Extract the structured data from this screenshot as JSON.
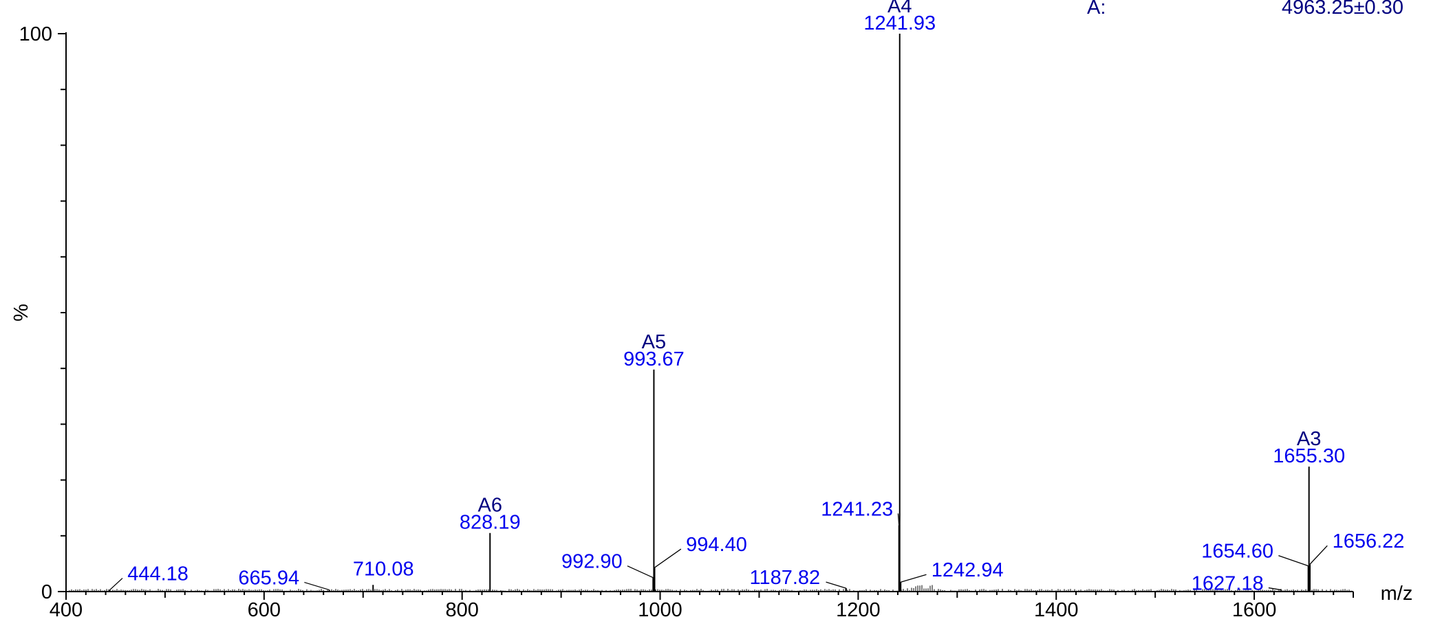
{
  "chart_data": {
    "type": "bar",
    "title": "",
    "xlabel": "m/z",
    "ylabel": "%",
    "xlim": [
      400,
      1700
    ],
    "ylim": [
      0,
      100
    ],
    "x_ticks": [
      400,
      600,
      800,
      1000,
      1200,
      1400,
      1600
    ],
    "y_ticks": [
      0,
      100
    ],
    "header": {
      "series": "A:",
      "mass": "4963.25±0.30"
    },
    "colors": {
      "charge_label": "#000080",
      "mz_label": "#0000ee",
      "peak": "#000000"
    },
    "peaks": [
      {
        "mz": 444.18,
        "intensity": 0.3,
        "label": "444.18"
      },
      {
        "mz": 665.94,
        "intensity": 0.3,
        "label": "665.94"
      },
      {
        "mz": 710.08,
        "intensity": 1.2,
        "label": "710.08"
      },
      {
        "mz": 828.19,
        "intensity": 10.5,
        "label": "828.19",
        "ion": "A6"
      },
      {
        "mz": 992.9,
        "intensity": 2.5,
        "label": "992.90"
      },
      {
        "mz": 993.67,
        "intensity": 39.8,
        "label": "993.67",
        "ion": "A5"
      },
      {
        "mz": 994.4,
        "intensity": 4.3,
        "label": "994.40"
      },
      {
        "mz": 1187.82,
        "intensity": 0.6,
        "label": "1187.82"
      },
      {
        "mz": 1241.23,
        "intensity": 11.9,
        "label": "1241.23"
      },
      {
        "mz": 1241.93,
        "intensity": 100,
        "label": "1241.93",
        "ion": "A4"
      },
      {
        "mz": 1242.94,
        "intensity": 1.7,
        "label": "1242.94"
      },
      {
        "mz": 1627.18,
        "intensity": 0.3,
        "label": "1627.18"
      },
      {
        "mz": 1654.6,
        "intensity": 4.6,
        "label": "1654.60"
      },
      {
        "mz": 1655.3,
        "intensity": 22.4,
        "label": "1655.30",
        "ion": "A3"
      },
      {
        "mz": 1656.22,
        "intensity": 4.9,
        "label": "1656.22"
      }
    ]
  }
}
